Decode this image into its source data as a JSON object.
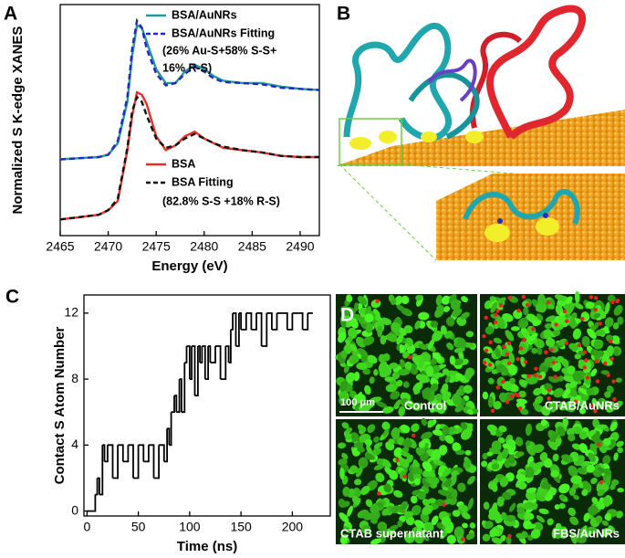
{
  "panel_labels": [
    "A",
    "B",
    "C",
    "D"
  ],
  "chart_data": [
    {
      "type": "line",
      "xlabel": "Energy (eV)",
      "ylabel": "Normalized S K-edge XANES",
      "x": [
        2465,
        2467,
        2469,
        2470,
        2471,
        2472,
        2472.5,
        2473,
        2473.5,
        2474,
        2475,
        2476,
        2477,
        2478,
        2479,
        2480,
        2481,
        2482,
        2484,
        2486,
        2488,
        2490,
        2492
      ],
      "series": [
        {
          "name": "BSA/AuNRs",
          "color": "#22999a",
          "style": "solid",
          "values": [
            0.33,
            0.335,
            0.34,
            0.35,
            0.4,
            0.58,
            0.78,
            0.91,
            0.9,
            0.84,
            0.72,
            0.66,
            0.66,
            0.71,
            0.74,
            0.72,
            0.69,
            0.67,
            0.66,
            0.66,
            0.645,
            0.635,
            0.63
          ]
        },
        {
          "name": "BSA/AuNRs Fitting",
          "color": "#2626c8",
          "style": "dashed",
          "values": [
            0.33,
            0.335,
            0.34,
            0.35,
            0.41,
            0.6,
            0.81,
            0.93,
            0.9,
            0.81,
            0.7,
            0.65,
            0.66,
            0.7,
            0.73,
            0.71,
            0.68,
            0.665,
            0.66,
            0.655,
            0.64,
            0.635,
            0.63
          ]
        },
        {
          "name": "BSA",
          "color": "#e8302a",
          "style": "solid",
          "values": [
            0.07,
            0.08,
            0.09,
            0.11,
            0.15,
            0.37,
            0.52,
            0.62,
            0.61,
            0.57,
            0.43,
            0.37,
            0.39,
            0.43,
            0.45,
            0.42,
            0.4,
            0.38,
            0.37,
            0.36,
            0.345,
            0.34,
            0.34
          ]
        },
        {
          "name": "BSA Fitting",
          "color": "#111111",
          "style": "dashed",
          "values": [
            0.07,
            0.08,
            0.09,
            0.11,
            0.16,
            0.38,
            0.54,
            0.6,
            0.58,
            0.52,
            0.42,
            0.38,
            0.39,
            0.42,
            0.44,
            0.42,
            0.4,
            0.385,
            0.37,
            0.36,
            0.345,
            0.34,
            0.34
          ]
        }
      ],
      "annotations": [
        "(26% Au-S+58% S-S+",
        "16% R-S)",
        "(82.8% S-S +18% R-S)"
      ],
      "xlim": [
        2465,
        2492
      ],
      "xticks": [
        2465,
        2470,
        2475,
        2480,
        2485,
        2490
      ],
      "ylim": [
        0,
        1
      ]
    },
    {
      "type": "step",
      "xlabel": "Time (ns)",
      "ylabel": "Contact S Atom Number",
      "color": "#000000",
      "x": [
        0,
        8,
        10,
        12,
        15,
        17,
        20,
        25,
        30,
        35,
        40,
        45,
        50,
        55,
        60,
        65,
        70,
        75,
        78,
        80,
        82,
        85,
        87,
        90,
        92,
        95,
        97,
        100,
        102,
        105,
        108,
        110,
        112,
        115,
        118,
        120,
        125,
        130,
        135,
        138,
        140,
        142,
        145,
        148,
        150,
        155,
        160,
        165,
        170,
        175,
        180,
        185,
        190,
        195,
        200,
        205,
        210,
        215,
        220
      ],
      "values": [
        0,
        1,
        2,
        1,
        4,
        3,
        4,
        2,
        4,
        3,
        4,
        2,
        4,
        3,
        4,
        2,
        4,
        3,
        5,
        4,
        6,
        7,
        6,
        8,
        6,
        9,
        10,
        8,
        10,
        7,
        10,
        9,
        10,
        8,
        10,
        9,
        10,
        8,
        10,
        9,
        11,
        12,
        10,
        12,
        11,
        12,
        11,
        12,
        10,
        12,
        11,
        12,
        12,
        11,
        12,
        12,
        11,
        12,
        12
      ],
      "xlim": [
        -3,
        237
      ],
      "xticks": [
        0,
        50,
        100,
        150,
        200
      ],
      "ylim": [
        -0.3,
        13.1
      ],
      "yticks": [
        0,
        4,
        8,
        12
      ]
    }
  ],
  "micrographs": {
    "labels": [
      "Control",
      "CTAB/AuNRs",
      "CTAB supernatant",
      "FBS/AuNRs"
    ],
    "scale_bar": "100 μm"
  }
}
